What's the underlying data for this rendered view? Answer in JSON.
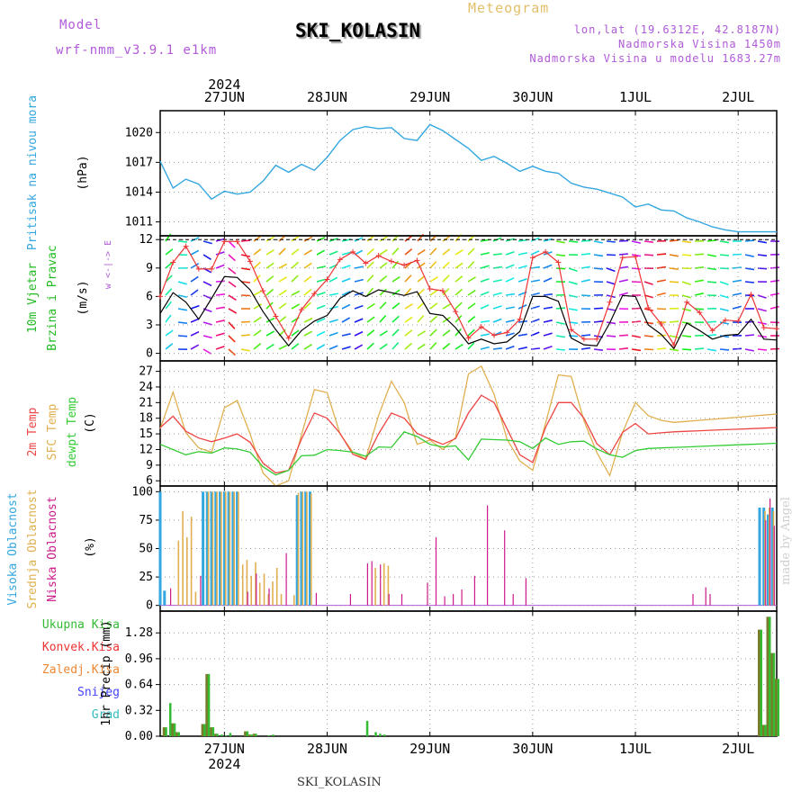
{
  "header": {
    "model_label": "Model",
    "model_value": "wrf-nmm_v3.9.1 e1km",
    "station": "SKI_KOLASIN",
    "product": "Meteogram",
    "lonlat": "lon,lat (19.6312E, 42.8187N)",
    "elevation": "Nadmorska Visina 1450m",
    "model_elevation": "Nadmorska Visina u modelu 1683.27m"
  },
  "footer": {
    "station": "SKI_KOLASIN",
    "credit": "made by Angel"
  },
  "colors": {
    "pressure": "#33a7e0",
    "wind_speed": "#000000",
    "wind_gust": "#ee3333",
    "temp2m": "#ee4444",
    "sfc_temp": "#e0b050",
    "dewpt": "#33cc33",
    "cloud_high": "#33a7e0",
    "cloud_mid": "#e0b050",
    "cloud_low": "#cc1a8a",
    "precip_total": "#33bb33",
    "precip_conv": "#ee3333",
    "precip_frozen": "#ee8833",
    "precip_snow": "#4444ff",
    "precip_grad": "#33bbbb"
  },
  "chart_data": [
    {
      "type": "line",
      "name": "pressure",
      "ylabel": "Pritisak na nivou mora",
      "unit": "(hPa)",
      "ylim": [
        1009.6,
        1022.2
      ],
      "yticks": [
        1011,
        1014,
        1017,
        1020
      ],
      "x_day_ticks": [
        "27JUN",
        "28JUN",
        "29JUN",
        "30JUN",
        "1JUL",
        "2JUL"
      ],
      "top_year": "2024",
      "x": [
        0,
        3,
        6,
        9,
        12,
        15,
        18,
        21,
        24,
        27,
        30,
        33,
        36,
        39,
        42,
        45,
        48,
        51,
        54,
        57,
        60,
        63,
        66,
        69,
        72,
        75,
        78,
        81,
        84,
        87,
        90,
        93,
        96,
        99,
        102,
        105,
        108,
        111,
        114,
        117,
        120,
        123,
        126,
        129,
        132,
        135,
        138,
        141,
        144
      ],
      "values": [
        1017.1,
        1014.4,
        1015.3,
        1014.8,
        1013.3,
        1014.1,
        1013.8,
        1014.0,
        1015.1,
        1016.7,
        1016.0,
        1016.8,
        1016.2,
        1017.5,
        1019.2,
        1020.3,
        1020.6,
        1020.4,
        1020.5,
        1019.4,
        1019.2,
        1020.8,
        1020.2,
        1019.3,
        1018.4,
        1017.2,
        1017.6,
        1016.9,
        1016.1,
        1016.6,
        1016.1,
        1015.9,
        1014.9,
        1014.5,
        1014.3,
        1013.9,
        1013.5,
        1012.5,
        1012.8,
        1012.2,
        1012.1,
        1011.4,
        1011.0,
        1010.5,
        1010.2,
        1010.0,
        1010.0,
        1010.0,
        1010.0
      ]
    },
    {
      "type": "line",
      "name": "wind",
      "ylabel": "10m Vjetar Brzina i Pravac",
      "unit": "(m/s)",
      "compass": "w <-|-> E",
      "ylim": [
        -0.8,
        12.4
      ],
      "yticks": [
        0,
        3,
        6,
        9,
        12
      ],
      "x": [
        0,
        3,
        6,
        9,
        12,
        15,
        18,
        21,
        24,
        27,
        30,
        33,
        36,
        39,
        42,
        45,
        48,
        51,
        54,
        57,
        60,
        63,
        66,
        69,
        72,
        75,
        78,
        81,
        84,
        87,
        90,
        93,
        96,
        99,
        102,
        105,
        108,
        111,
        114,
        117,
        120,
        123,
        126,
        129,
        132,
        135,
        138,
        141,
        144
      ],
      "speed": [
        4.2,
        6.4,
        5.4,
        3.6,
        5.8,
        8.1,
        8.0,
        6.7,
        4.4,
        2.5,
        0.8,
        2.4,
        3.4,
        4.0,
        5.8,
        6.6,
        6.0,
        6.7,
        6.4,
        6.1,
        6.5,
        4.2,
        4.0,
        2.7,
        1.0,
        1.5,
        1.0,
        1.2,
        2.3,
        6.0,
        6.0,
        5.5,
        1.6,
        0.9,
        0.8,
        3.2,
        6.1,
        6.0,
        3.0,
        2.0,
        0.5,
        3.2,
        2.4,
        1.5,
        1.9,
        2.0,
        3.6,
        1.5,
        1.4
      ],
      "gust": [
        6.0,
        9.6,
        11.3,
        8.9,
        8.9,
        11.8,
        11.8,
        9.7,
        6.6,
        3.9,
        1.6,
        4.6,
        6.3,
        7.8,
        9.9,
        10.7,
        9.5,
        10.3,
        9.7,
        9.3,
        9.8,
        6.8,
        6.6,
        4.4,
        1.6,
        2.8,
        1.9,
        2.2,
        3.6,
        10.1,
        10.7,
        9.6,
        2.5,
        1.5,
        1.5,
        5.4,
        10.1,
        10.2,
        4.8,
        3.1,
        0.9,
        5.4,
        4.3,
        2.4,
        3.5,
        3.4,
        6.2,
        2.7,
        2.6
      ]
    },
    {
      "type": "line",
      "name": "temperature",
      "ylabel": "2m Temp SFC Temp dewpt Temp",
      "unit": "(C)",
      "ylim": [
        5,
        29
      ],
      "yticks": [
        6,
        9,
        12,
        15,
        18,
        21,
        24,
        27
      ],
      "x": [
        0,
        3,
        6,
        9,
        12,
        15,
        18,
        21,
        24,
        27,
        30,
        33,
        36,
        39,
        42,
        45,
        48,
        51,
        54,
        57,
        60,
        63,
        66,
        69,
        72,
        75,
        78,
        81,
        84,
        87,
        90,
        93,
        96,
        99,
        102,
        105,
        108,
        111,
        114,
        117,
        120,
        123,
        126,
        129,
        132,
        135,
        138,
        141,
        144
      ],
      "t2m": [
        16.2,
        18.4,
        15.5,
        14.2,
        13.5,
        14.2,
        15.0,
        13.4,
        9.4,
        7.5,
        8.0,
        14.0,
        19.0,
        18.0,
        15.1,
        11.1,
        10.1,
        15.0,
        19.0,
        18.0,
        15.1,
        14.0,
        13.0,
        14.1,
        19.0,
        22.4,
        21.0,
        16.0,
        11.0,
        9.5,
        16.2,
        21.0,
        21.0,
        18.0,
        13.1,
        11.0,
        15.3,
        17.0,
        15.0,
        15.2,
        15.4,
        15.5,
        15.6,
        15.7,
        15.8,
        15.9,
        16.0,
        16.1,
        16.2
      ],
      "sfc": [
        16.0,
        23.0,
        15.2,
        12.3,
        11.5,
        20.0,
        21.4,
        15.0,
        7.5,
        5.0,
        6.0,
        14.8,
        23.5,
        22.9,
        15.0,
        11.5,
        10.2,
        18.5,
        25.1,
        21.0,
        13.0,
        13.8,
        12.0,
        14.3,
        26.5,
        28.0,
        22.6,
        14.0,
        9.8,
        8.0,
        17.0,
        26.3,
        26.0,
        17.5,
        11.4,
        7.0,
        15.3,
        21.0,
        18.5,
        17.6,
        17.2,
        17.4,
        17.6,
        17.8,
        18.0,
        18.2,
        18.4,
        18.6,
        18.8
      ],
      "dewpt": [
        13.0,
        12.0,
        11.0,
        11.6,
        11.3,
        12.3,
        12.1,
        11.5,
        8.7,
        7.1,
        8.0,
        10.8,
        10.9,
        12.0,
        11.8,
        11.5,
        10.7,
        12.5,
        12.4,
        15.4,
        14.5,
        13.0,
        12.5,
        12.7,
        10.0,
        14.0,
        13.9,
        13.8,
        13.5,
        12.2,
        14.2,
        13.0,
        13.5,
        13.6,
        12.1,
        11.0,
        10.5,
        11.8,
        12.2,
        12.3,
        12.4,
        12.5,
        12.6,
        12.7,
        12.8,
        12.9,
        13.0,
        13.1,
        13.2
      ]
    },
    {
      "type": "bar",
      "name": "cloud",
      "ylabel": "Visoka Oblacnost Srednja Oblacnost Niska Oblacnost",
      "unit": "(%)",
      "ylim": [
        -5,
        105
      ],
      "yticks": [
        0,
        25,
        50,
        75,
        100
      ],
      "high": {
        "x": [
          0,
          1,
          10,
          11,
          12,
          13,
          14,
          15,
          16,
          17,
          18,
          32,
          33,
          34,
          35,
          140,
          141,
          142,
          143
        ],
        "values": [
          100,
          13,
          100,
          100,
          100,
          100,
          100,
          100,
          100,
          100,
          100,
          97,
          100,
          100,
          100,
          86,
          86,
          80,
          86
        ]
      },
      "mid": {
        "x": [
          4,
          5,
          6,
          7,
          8,
          11,
          12,
          13,
          14,
          15,
          16,
          17,
          18,
          19,
          20,
          21,
          22,
          23,
          24,
          25,
          26,
          27,
          28,
          31,
          32,
          33,
          34,
          35,
          50,
          52,
          53,
          141,
          142,
          143
        ],
        "values": [
          57,
          83,
          60,
          78,
          12,
          100,
          100,
          100,
          100,
          100,
          100,
          100,
          100,
          36,
          40,
          26,
          38,
          20,
          28,
          10,
          21,
          33,
          10,
          9,
          99,
          100,
          100,
          98,
          33,
          37,
          35,
          83,
          86,
          83
        ]
      },
      "low": {
        "x": [
          2,
          9,
          20,
          22,
          25,
          29,
          36,
          44,
          48,
          49,
          51,
          53,
          56,
          62,
          64,
          66,
          68,
          70,
          73,
          76,
          80,
          82,
          85,
          124,
          127,
          128,
          141,
          142,
          143
        ],
        "values": [
          15,
          26,
          12,
          28,
          15,
          46,
          11,
          10,
          37,
          39,
          36,
          10,
          10,
          20,
          60,
          8,
          10,
          14,
          26,
          88,
          66,
          10,
          24,
          10,
          16,
          10,
          75,
          94,
          70
        ]
      }
    },
    {
      "type": "bar",
      "name": "precip",
      "ylabel": "1hr Precip",
      "unit": "(mm)",
      "legend": [
        "Ukupna Kisa",
        "Konvek.Kisa",
        "Zaledj.Kisa",
        "Snijeg",
        "Grad"
      ],
      "ylim": [
        0,
        1.55
      ],
      "yticks": [
        0,
        0.32,
        0.64,
        0.96,
        1.28
      ],
      "bottom_year": "2024",
      "total": {
        "x": [
          1,
          2,
          3,
          4,
          10,
          11,
          12,
          13,
          14,
          15,
          16,
          20,
          21,
          22,
          25,
          26,
          48,
          50,
          51,
          52,
          140,
          141,
          142,
          143,
          144
        ],
        "values": [
          0.11,
          0.41,
          0.16,
          0.05,
          0.15,
          0.77,
          0.11,
          0.03,
          0.02,
          0.01,
          0.04,
          0.06,
          0.02,
          0.03,
          0.01,
          0.02,
          0.19,
          0.05,
          0.03,
          0.02,
          1.32,
          0.14,
          1.48,
          1.03,
          0.71
        ]
      },
      "conv": {
        "x": [
          1,
          3,
          4,
          10,
          11,
          12,
          13,
          20,
          21,
          22,
          140,
          141,
          142,
          143,
          144
        ],
        "values": [
          0.11,
          0.16,
          0.05,
          0.15,
          0.77,
          0.11,
          0.03,
          0.06,
          0.02,
          0.03,
          1.32,
          0.14,
          1.48,
          1.03,
          0.71
        ]
      }
    }
  ]
}
